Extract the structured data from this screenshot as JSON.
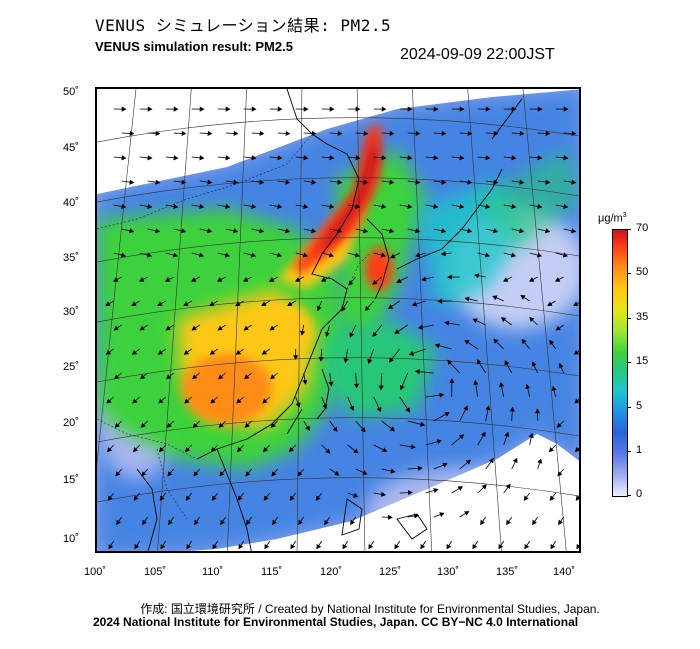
{
  "header": {
    "title_jp": "VENUS シミュレーション結果: PM2.5",
    "title_en": "VENUS simulation result: PM2.5",
    "timestamp": "2024-09-09 22:00JST"
  },
  "map": {
    "lat_labels": [
      "50˚",
      "45˚",
      "40˚",
      "35˚",
      "30˚",
      "25˚",
      "20˚",
      "15˚",
      "10˚"
    ],
    "lon_labels": [
      "100˚",
      "105˚",
      "110˚",
      "115˚",
      "120˚",
      "125˚",
      "130˚",
      "135˚",
      "140˚"
    ],
    "lat_range": [
      10,
      50
    ],
    "lon_range": [
      100,
      140
    ]
  },
  "colorbar": {
    "unit": "μg/m",
    "unit_sup": "3",
    "labels": [
      "70",
      "50",
      "35",
      "15",
      "5",
      "1",
      "0"
    ]
  },
  "footer": {
    "credit": "作成: 国立環境研究所 / Created by National Institute for Environmental Studies, Japan.",
    "copyright": "2024 National Institute for Environmental Studies, Japan. CC BY−NC 4.0 International"
  },
  "colors": {
    "high": "#c8141e",
    "medium": "#e6e614",
    "low": "#3cd23c",
    "background_low": "#2864dc",
    "clean": "#f0f0ff"
  }
}
